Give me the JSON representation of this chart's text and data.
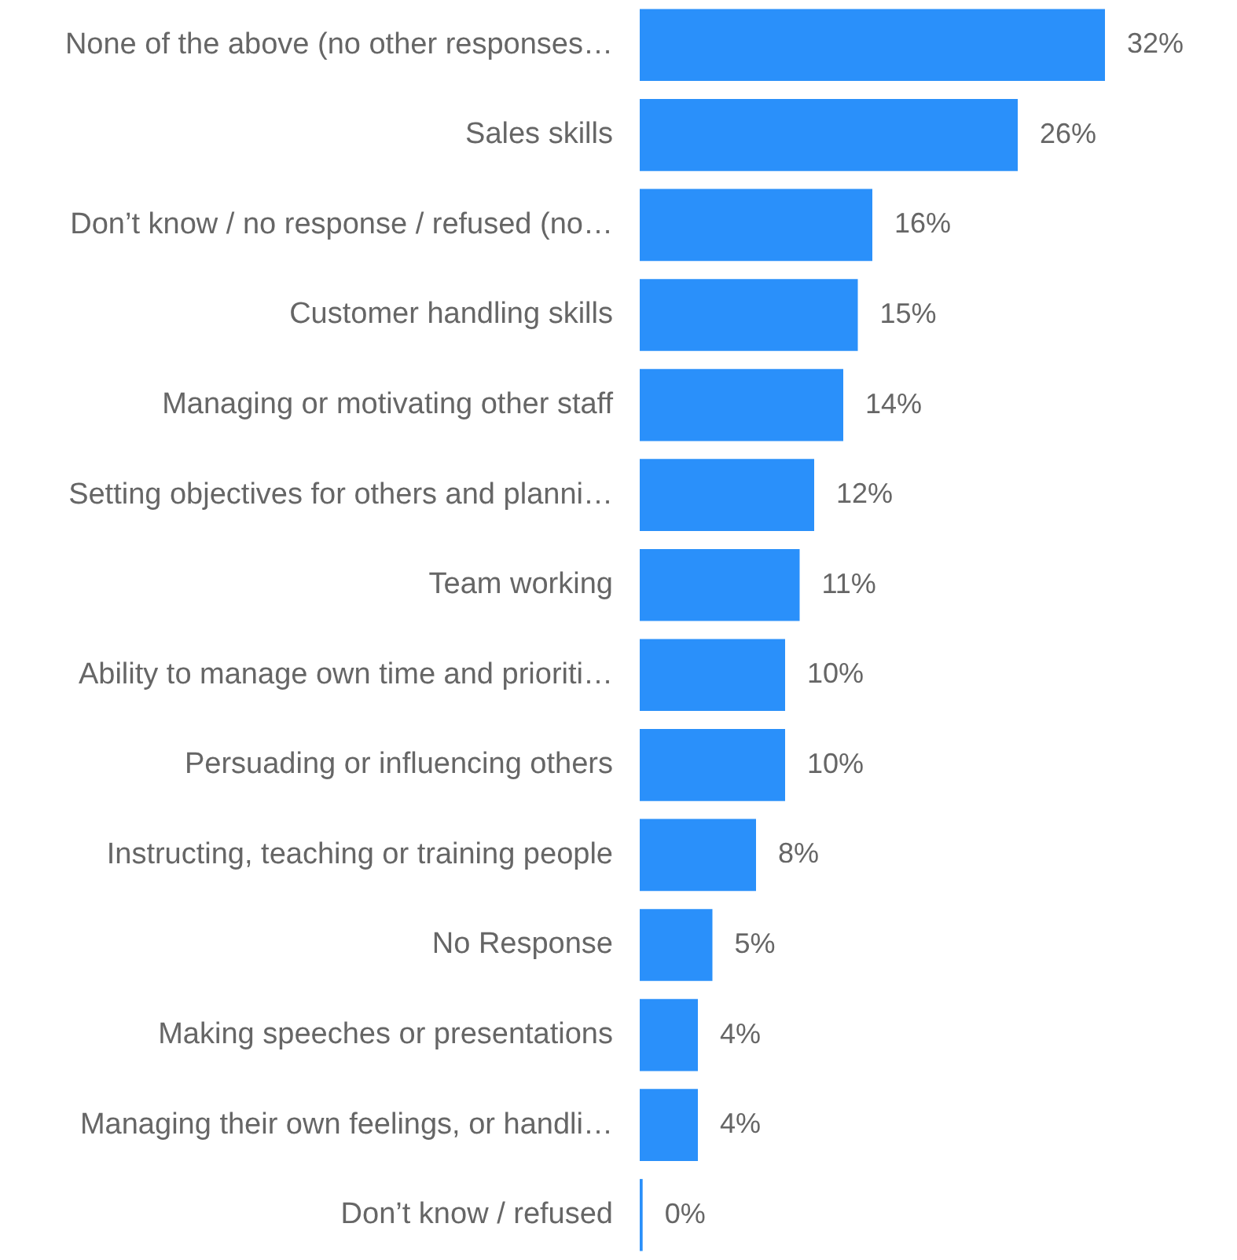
{
  "chart_data": {
    "type": "bar",
    "orientation": "horizontal",
    "categories": [
      "None of the above (no other responses…",
      "Sales skills",
      "Don’t know / no response / refused (no…",
      "Customer handling skills",
      "Managing or motivating other staff",
      "Setting objectives for others and planni…",
      "Team working",
      "Ability to manage own time and prioriti…",
      "Persuading or influencing others",
      "Instructing, teaching or training people",
      "No Response",
      "Making speeches or presentations",
      "Managing their own feelings, or handli…",
      "Don’t know / refused"
    ],
    "values": [
      32,
      26,
      16,
      15,
      14,
      12,
      11,
      10,
      10,
      8,
      5,
      4,
      4,
      0.2
    ],
    "value_labels": [
      "32%",
      "26%",
      "16%",
      "15%",
      "14%",
      "12%",
      "11%",
      "10%",
      "10%",
      "8%",
      "5%",
      "4%",
      "4%",
      "0%"
    ],
    "color": "#2a90fa"
  }
}
